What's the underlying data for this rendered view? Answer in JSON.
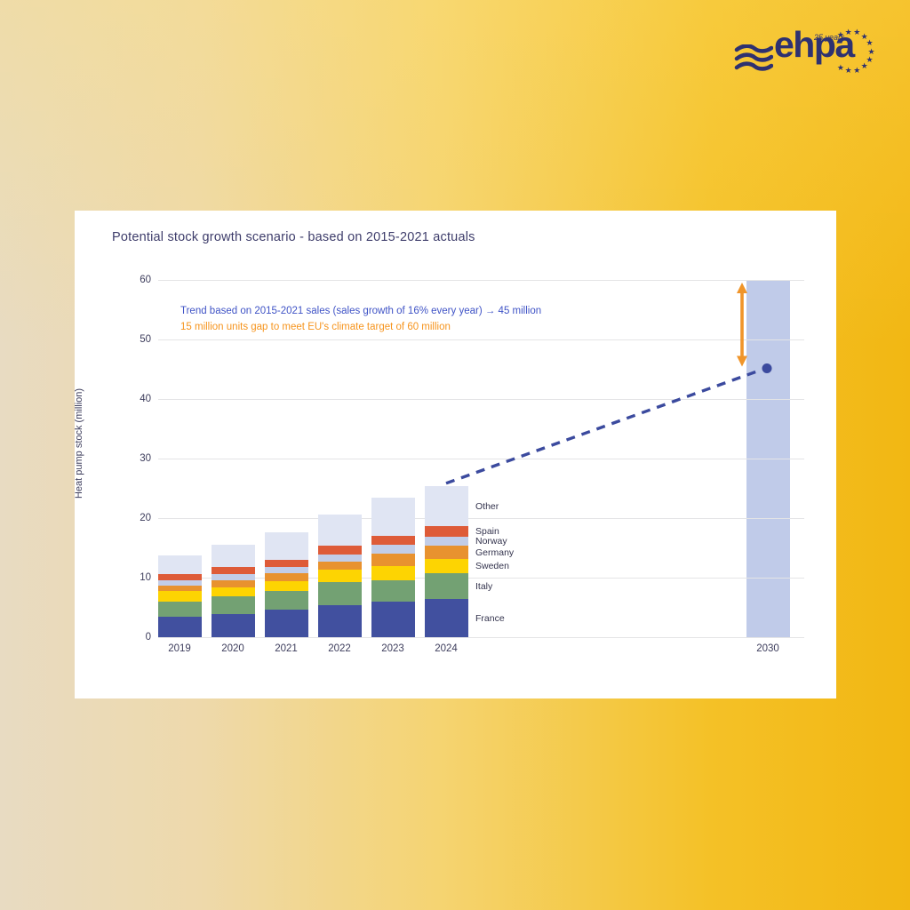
{
  "logo": {
    "text": "ehpa",
    "tagline": "25 years",
    "color": "#2e3170"
  },
  "chart_data": {
    "type": "bar",
    "title": "Potential stock growth scenario - based on 2015-2021 actuals",
    "ylabel": "Heat pump stock (million)",
    "ylim": [
      0,
      60
    ],
    "yticks": [
      0,
      10,
      20,
      30,
      40,
      50,
      60
    ],
    "grid": true,
    "categories": [
      "2019",
      "2020",
      "2021",
      "2022",
      "2023",
      "2024"
    ],
    "series": [
      {
        "name": "France",
        "color": "#41509f",
        "values": [
          3.5,
          3.9,
          4.7,
          5.4,
          5.9,
          6.4
        ]
      },
      {
        "name": "Italy",
        "color": "#73a173",
        "values": [
          2.5,
          2.9,
          3.0,
          3.8,
          3.7,
          4.3
        ]
      },
      {
        "name": "Sweden",
        "color": "#fdd402",
        "values": [
          1.7,
          1.6,
          1.7,
          2.1,
          2.3,
          2.4
        ]
      },
      {
        "name": "Germany",
        "color": "#e8922f",
        "values": [
          1.0,
          1.2,
          1.4,
          1.4,
          2.2,
          2.2
        ]
      },
      {
        "name": "Norway",
        "color": "#c2cde8",
        "values": [
          0.9,
          1.0,
          1.0,
          1.2,
          1.4,
          1.5
        ]
      },
      {
        "name": "Spain",
        "color": "#de5b38",
        "values": [
          1.0,
          1.2,
          1.2,
          1.4,
          1.5,
          1.8
        ]
      },
      {
        "name": "Other",
        "color": "#e0e5f3",
        "values": [
          3.1,
          3.7,
          4.6,
          5.3,
          6.4,
          6.8
        ]
      }
    ],
    "totals": [
      13.7,
      15.5,
      17.6,
      20.6,
      23.4,
      25.4
    ],
    "target_bar": {
      "category": "2030",
      "value": 60,
      "color": "#c0cbe9"
    },
    "trend_point": {
      "category": "2030",
      "value": 45,
      "color": "#3b4a9e"
    },
    "trend_line": {
      "from_category": "2024",
      "to_category": "2030",
      "color": "#3b4a9e",
      "style": "dashed"
    },
    "gap_arrow": {
      "from_value": 45,
      "to_value": 60,
      "color": "#f0952a"
    },
    "annotations": [
      {
        "id": "trend_label",
        "text": "Trend based on 2015-2021 sales (sales growth of 16% every year) → 45 million",
        "color": "#3f53c6"
      },
      {
        "id": "gap_label",
        "text": "15 million units gap to meet EU's climate target of 60 million",
        "color": "#f6941d"
      }
    ],
    "legend_position": "right-of-2024-bar"
  }
}
